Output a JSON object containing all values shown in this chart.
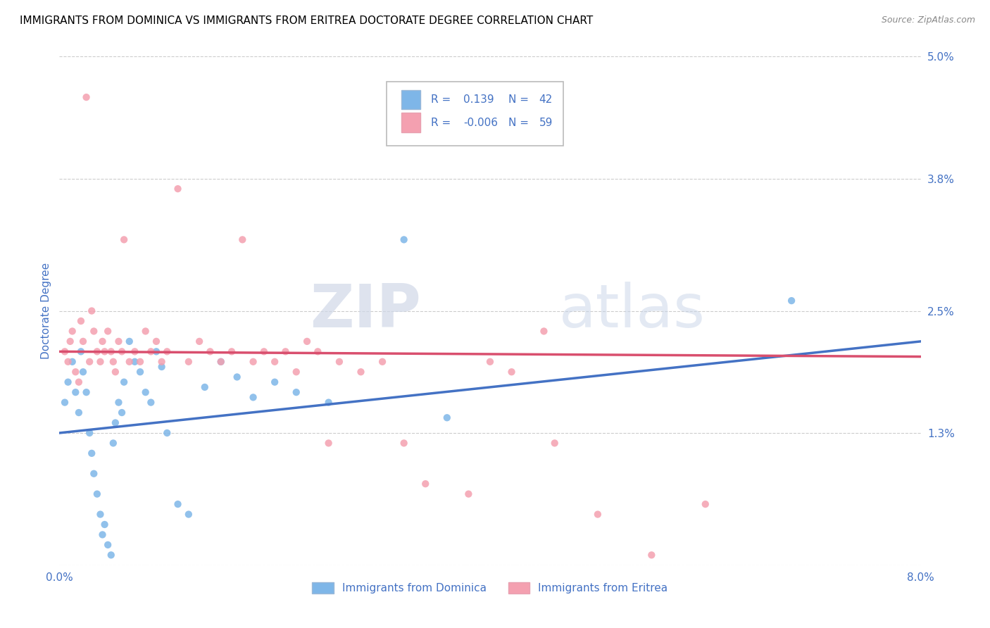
{
  "title": "IMMIGRANTS FROM DOMINICA VS IMMIGRANTS FROM ERITREA DOCTORATE DEGREE CORRELATION CHART",
  "source": "Source: ZipAtlas.com",
  "ylabel": "Doctorate Degree",
  "xlim": [
    0.0,
    8.0
  ],
  "ylim": [
    0.0,
    5.0
  ],
  "ytick_positions": [
    0.0,
    1.3,
    2.5,
    3.8,
    5.0
  ],
  "ytick_labels": [
    "",
    "1.3%",
    "2.5%",
    "3.8%",
    "5.0%"
  ],
  "grid_color": "#cccccc",
  "watermark_zip": "ZIP",
  "watermark_atlas": "atlas",
  "dominica_color": "#7eb6e8",
  "eritrea_color": "#f4a0b0",
  "dominica_line_color": "#4472c4",
  "eritrea_line_color": "#d94f6e",
  "legend_text_color": "#4472c4",
  "axis_label_color": "#4472c4",
  "tick_label_color": "#4472c4",
  "background_color": "#ffffff",
  "title_fontsize": 11,
  "dominica_x": [
    0.05,
    0.08,
    0.12,
    0.15,
    0.18,
    0.2,
    0.22,
    0.25,
    0.28,
    0.3,
    0.32,
    0.35,
    0.38,
    0.4,
    0.42,
    0.45,
    0.48,
    0.5,
    0.52,
    0.55,
    0.58,
    0.6,
    0.65,
    0.7,
    0.75,
    0.8,
    0.85,
    0.9,
    0.95,
    1.0,
    1.1,
    1.2,
    1.35,
    1.5,
    1.65,
    1.8,
    2.0,
    2.2,
    2.5,
    3.2,
    3.6,
    6.8
  ],
  "dominica_y": [
    1.6,
    1.8,
    2.0,
    1.7,
    1.5,
    2.1,
    1.9,
    1.7,
    1.3,
    1.1,
    0.9,
    0.7,
    0.5,
    0.3,
    0.4,
    0.2,
    0.1,
    1.2,
    1.4,
    1.6,
    1.5,
    1.8,
    2.2,
    2.0,
    1.9,
    1.7,
    1.6,
    2.1,
    1.95,
    1.3,
    0.6,
    0.5,
    1.75,
    2.0,
    1.85,
    1.65,
    1.8,
    1.7,
    1.6,
    3.2,
    1.45,
    2.6
  ],
  "eritrea_x": [
    0.05,
    0.08,
    0.1,
    0.12,
    0.15,
    0.18,
    0.2,
    0.22,
    0.25,
    0.28,
    0.3,
    0.32,
    0.35,
    0.38,
    0.4,
    0.42,
    0.45,
    0.48,
    0.5,
    0.52,
    0.55,
    0.58,
    0.6,
    0.65,
    0.7,
    0.75,
    0.8,
    0.85,
    0.9,
    0.95,
    1.0,
    1.1,
    1.2,
    1.3,
    1.4,
    1.5,
    1.6,
    1.7,
    1.8,
    1.9,
    2.0,
    2.1,
    2.2,
    2.3,
    2.4,
    2.5,
    2.6,
    2.8,
    3.0,
    3.2,
    3.4,
    3.8,
    4.0,
    4.5,
    5.0,
    5.5,
    4.6,
    4.2,
    6.0
  ],
  "eritrea_y": [
    2.1,
    2.0,
    2.2,
    2.3,
    1.9,
    1.8,
    2.4,
    2.2,
    4.6,
    2.0,
    2.5,
    2.3,
    2.1,
    2.0,
    2.2,
    2.1,
    2.3,
    2.1,
    2.0,
    1.9,
    2.2,
    2.1,
    3.2,
    2.0,
    2.1,
    2.0,
    2.3,
    2.1,
    2.2,
    2.0,
    2.1,
    3.7,
    2.0,
    2.2,
    2.1,
    2.0,
    2.1,
    3.2,
    2.0,
    2.1,
    2.0,
    2.1,
    1.9,
    2.2,
    2.1,
    1.2,
    2.0,
    1.9,
    2.0,
    1.2,
    0.8,
    0.7,
    2.0,
    2.3,
    0.5,
    0.1,
    1.2,
    1.9,
    0.6
  ],
  "dominica_trendline_start": 1.3,
  "dominica_trendline_end": 2.2,
  "eritrea_trendline_start": 2.1,
  "eritrea_trendline_end": 2.05
}
